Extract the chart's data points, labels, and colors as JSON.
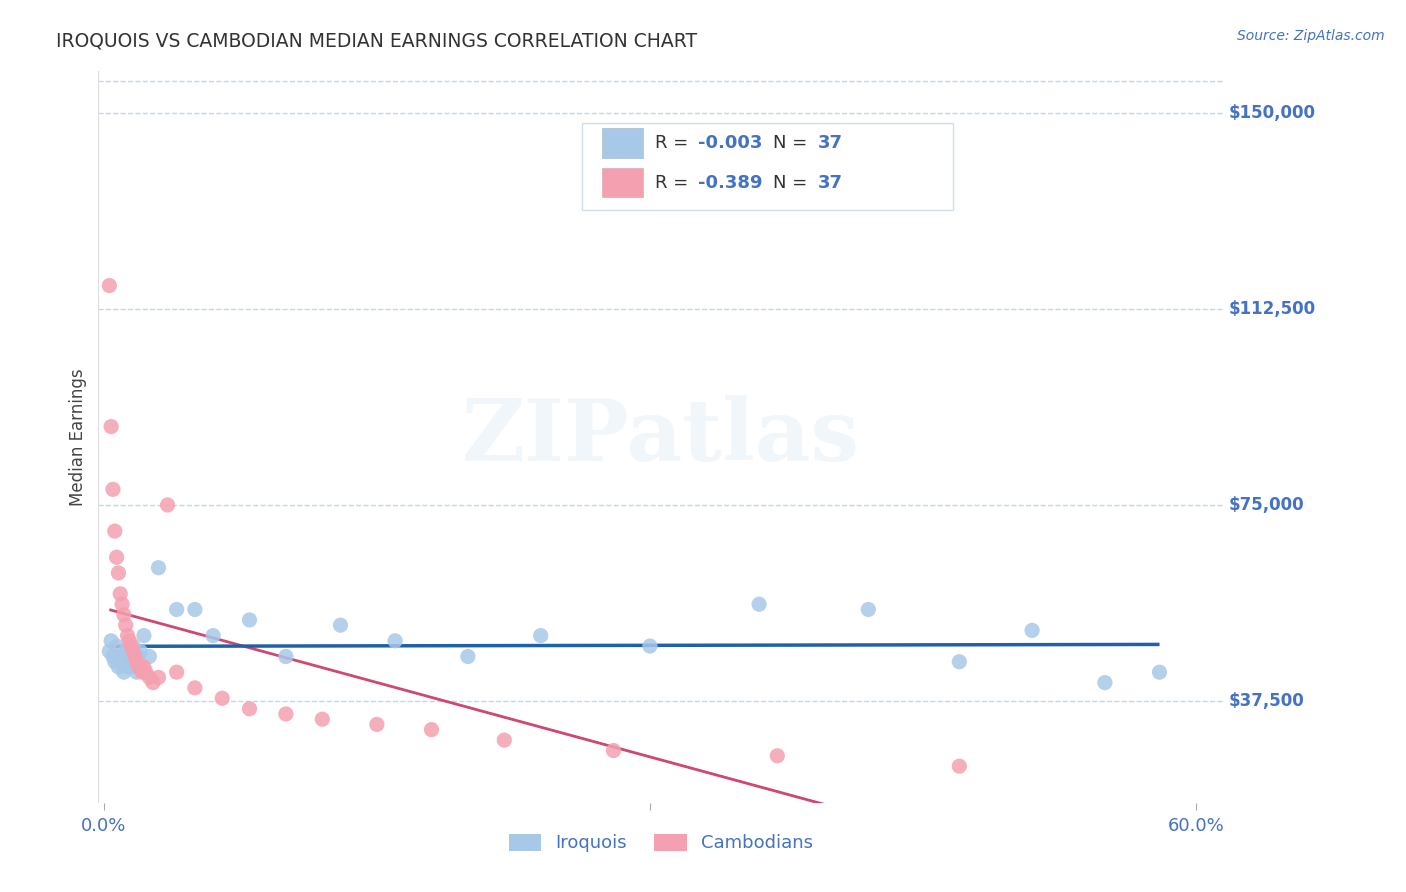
{
  "title": "IROQUOIS VS CAMBODIAN MEDIAN EARNINGS CORRELATION CHART",
  "source": "Source: ZipAtlas.com",
  "ylabel": "Median Earnings",
  "ytick_values": [
    37500,
    75000,
    112500,
    150000
  ],
  "ytick_labels": [
    "$37,500",
    "$75,000",
    "$112,500",
    "$150,000"
  ],
  "ymin": 18000,
  "ymax": 158000,
  "xmin": -0.003,
  "xmax": 0.615,
  "r_iroquois": "-0.003",
  "n_iroquois": "37",
  "r_cambodian": "-0.389",
  "n_cambodian": "37",
  "iroquois_color": "#a8c8e8",
  "cambodian_color": "#f4a0b0",
  "iroquois_line_color": "#2060a8",
  "cambodian_line_color": "#d04870",
  "title_color": "#333333",
  "label_color": "#4472c4",
  "ytick_color": "#4472c4",
  "background_color": "#ffffff",
  "grid_color": "#c0d8ee",
  "watermark": "ZIPatlas",
  "legend_r_color": "#4472c4",
  "legend_n_color": "#4472c4",
  "iroquois_x": [
    0.003,
    0.004,
    0.005,
    0.006,
    0.007,
    0.008,
    0.009,
    0.01,
    0.011,
    0.012,
    0.013,
    0.014,
    0.015,
    0.016,
    0.017,
    0.018,
    0.019,
    0.02,
    0.022,
    0.025,
    0.03,
    0.04,
    0.05,
    0.06,
    0.08,
    0.1,
    0.13,
    0.16,
    0.2,
    0.24,
    0.3,
    0.36,
    0.42,
    0.47,
    0.51,
    0.55,
    0.58
  ],
  "iroquois_y": [
    47000,
    49000,
    46000,
    45000,
    48000,
    44000,
    46000,
    45000,
    43000,
    47000,
    44000,
    46000,
    44000,
    48000,
    45000,
    43000,
    46000,
    47000,
    50000,
    46000,
    63000,
    55000,
    55000,
    50000,
    53000,
    46000,
    52000,
    49000,
    46000,
    50000,
    48000,
    56000,
    55000,
    45000,
    51000,
    41000,
    43000
  ],
  "cambodian_x": [
    0.003,
    0.004,
    0.005,
    0.006,
    0.007,
    0.008,
    0.009,
    0.01,
    0.011,
    0.012,
    0.013,
    0.014,
    0.015,
    0.016,
    0.017,
    0.018,
    0.019,
    0.02,
    0.021,
    0.022,
    0.023,
    0.025,
    0.027,
    0.03,
    0.035,
    0.04,
    0.05,
    0.065,
    0.08,
    0.1,
    0.12,
    0.15,
    0.18,
    0.22,
    0.28,
    0.37,
    0.47
  ],
  "cambodian_y": [
    117000,
    90000,
    78000,
    70000,
    65000,
    62000,
    58000,
    56000,
    54000,
    52000,
    50000,
    49000,
    48000,
    47000,
    46000,
    45000,
    44000,
    44000,
    43000,
    44000,
    43000,
    42000,
    41000,
    42000,
    75000,
    43000,
    40000,
    38000,
    36000,
    35000,
    34000,
    33000,
    32000,
    30000,
    28000,
    27000,
    25000
  ]
}
